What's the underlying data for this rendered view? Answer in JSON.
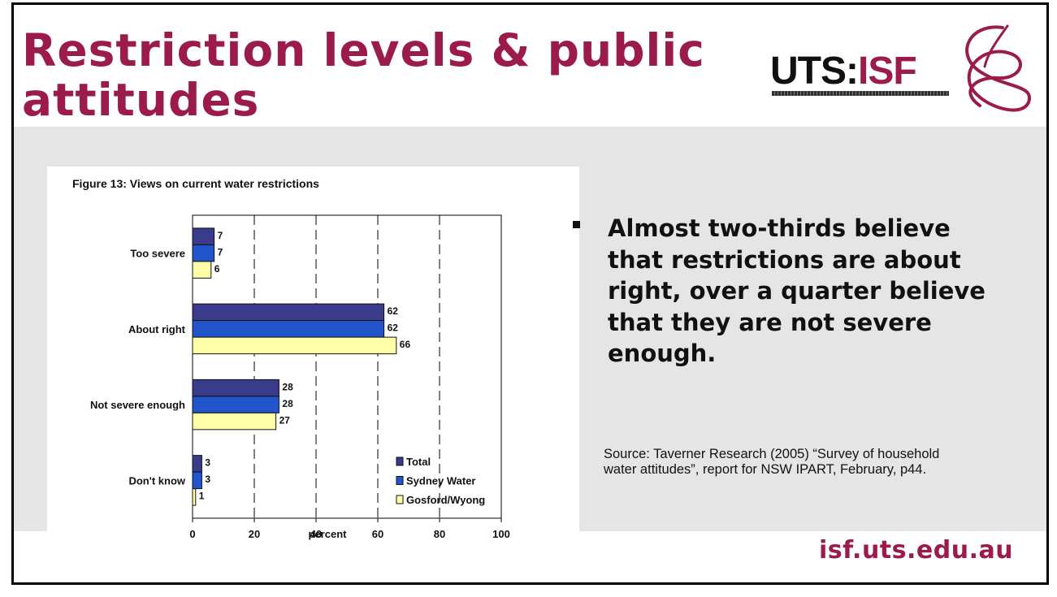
{
  "slide": {
    "title": "Restriction levels & public attitudes",
    "logo": {
      "brand_left": "UTS:",
      "brand_right": "ISF",
      "icon": "isf-swirl-logo-icon"
    },
    "bullet": "Almost two-thirds believe that restrictions are about right, over a quarter believe that they are not severe enough.",
    "source": "Source: Taverner Research (2005) “Survey of household water attitudes”, report for NSW IPART, February, p44.",
    "url": "isf.uts.edu.au",
    "colors": {
      "brand": "#9b1b4d",
      "panel": "#e5e5e5"
    }
  },
  "chart_data": {
    "type": "bar",
    "orientation": "horizontal",
    "title": "Figure 13: Views on current water restrictions",
    "categories": [
      "Too severe",
      "About right",
      "Not severe enough",
      "Don't know"
    ],
    "series": [
      {
        "name": "Total",
        "values": [
          7,
          62,
          28,
          3
        ],
        "color": "#3b3b8c"
      },
      {
        "name": "Sydney Water",
        "values": [
          7,
          62,
          28,
          3
        ],
        "color": "#2255cc"
      },
      {
        "name": "Gosford/Wyong",
        "values": [
          6,
          66,
          27,
          1
        ],
        "color": "#ffffa8"
      }
    ],
    "xlabel": "percent",
    "xlim": [
      0,
      100
    ],
    "xticks": [
      0,
      20,
      40,
      60,
      80,
      100
    ],
    "grid": true,
    "legend_position": "bottom-right"
  }
}
